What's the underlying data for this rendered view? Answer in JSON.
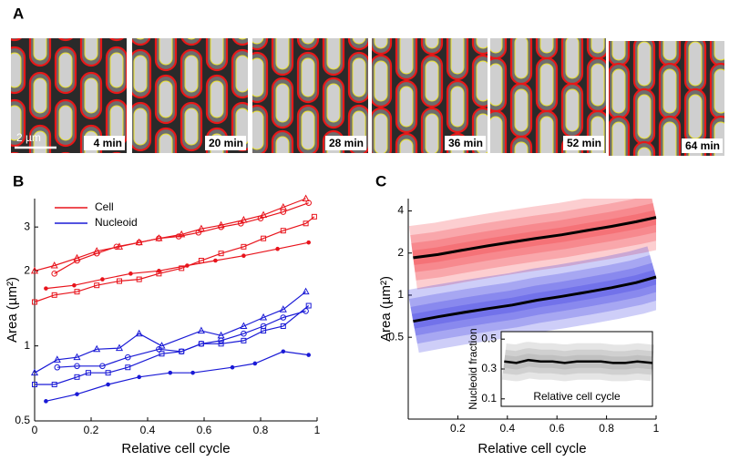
{
  "panel_a": {
    "label": "A",
    "scale_bar": "2 µm",
    "frames": [
      "4 min",
      "20 min",
      "28 min",
      "36 min",
      "52 min",
      "64 min"
    ]
  },
  "chart_data": [
    {
      "type": "line",
      "label": "B",
      "log_y": true,
      "ylabel": "Area (µm²)",
      "xlabel": "Relative cell cycle",
      "xlim": [
        0,
        1
      ],
      "xticks": [
        0,
        0.2,
        0.4,
        0.6,
        0.8,
        1
      ],
      "ylim": [
        0.5,
        3.9
      ],
      "yticks": [
        0.5,
        1,
        2,
        3
      ],
      "legend": "top-left",
      "series": [
        {
          "name": "Cell",
          "color": "#e8141c",
          "marker": "triangle",
          "x": [
            0,
            0.07,
            0.15,
            0.22,
            0.3,
            0.37,
            0.44,
            0.52,
            0.59,
            0.66,
            0.74,
            0.81,
            0.88,
            0.96
          ],
          "values": [
            2.0,
            2.1,
            2.25,
            2.4,
            2.5,
            2.6,
            2.7,
            2.8,
            2.95,
            3.05,
            3.2,
            3.35,
            3.6,
            3.9
          ]
        },
        {
          "name": "Cell",
          "color": "#e8141c",
          "marker": "circle",
          "x": [
            0.07,
            0.15,
            0.22,
            0.29,
            0.37,
            0.44,
            0.51,
            0.58,
            0.66,
            0.73,
            0.8,
            0.88,
            0.97
          ],
          "values": [
            1.95,
            2.2,
            2.35,
            2.5,
            2.6,
            2.7,
            2.75,
            2.85,
            3.0,
            3.1,
            3.25,
            3.45,
            3.75
          ]
        },
        {
          "name": "Cell",
          "color": "#e8141c",
          "marker": "square",
          "x": [
            0,
            0.07,
            0.15,
            0.22,
            0.3,
            0.37,
            0.44,
            0.52,
            0.59,
            0.66,
            0.74,
            0.81,
            0.88,
            0.96,
            0.99
          ],
          "values": [
            1.5,
            1.6,
            1.65,
            1.75,
            1.82,
            1.85,
            1.95,
            2.05,
            2.2,
            2.35,
            2.5,
            2.7,
            2.9,
            3.1,
            3.3
          ]
        },
        {
          "name": "Cell",
          "color": "#e8141c",
          "marker": "star",
          "x": [
            0.04,
            0.14,
            0.24,
            0.34,
            0.44,
            0.54,
            0.64,
            0.74,
            0.86,
            0.97
          ],
          "values": [
            1.7,
            1.75,
            1.85,
            1.95,
            2.0,
            2.1,
            2.2,
            2.3,
            2.45,
            2.6
          ]
        },
        {
          "name": "Nucleoid",
          "color": "#1a1ad6",
          "marker": "triangle",
          "x": [
            0,
            0.08,
            0.15,
            0.22,
            0.3,
            0.37,
            0.45,
            0.59,
            0.66,
            0.74,
            0.81,
            0.88,
            0.96
          ],
          "values": [
            0.78,
            0.88,
            0.9,
            0.97,
            0.98,
            1.12,
            1.0,
            1.15,
            1.1,
            1.2,
            1.3,
            1.4,
            1.65
          ]
        },
        {
          "name": "Nucleoid",
          "color": "#1a1ad6",
          "marker": "circle",
          "x": [
            0.08,
            0.15,
            0.24,
            0.33,
            0.44,
            0.52,
            0.59,
            0.66,
            0.74,
            0.81,
            0.88,
            0.96
          ],
          "values": [
            0.82,
            0.83,
            0.83,
            0.9,
            0.97,
            0.95,
            1.02,
            1.05,
            1.12,
            1.2,
            1.3,
            1.38
          ]
        },
        {
          "name": "Nucleoid",
          "color": "#1a1ad6",
          "marker": "square",
          "x": [
            0,
            0.07,
            0.15,
            0.19,
            0.26,
            0.33,
            0.45,
            0.52,
            0.59,
            0.66,
            0.74,
            0.81,
            0.88,
            0.97
          ],
          "values": [
            0.7,
            0.7,
            0.75,
            0.78,
            0.78,
            0.82,
            0.93,
            0.95,
            1.02,
            1.02,
            1.05,
            1.15,
            1.2,
            1.45
          ]
        },
        {
          "name": "Nucleoid",
          "color": "#1a1ad6",
          "marker": "star",
          "x": [
            0.04,
            0.15,
            0.26,
            0.37,
            0.48,
            0.56,
            0.7,
            0.78,
            0.88,
            0.97
          ],
          "values": [
            0.6,
            0.64,
            0.7,
            0.75,
            0.78,
            0.78,
            0.82,
            0.85,
            0.95,
            0.92
          ]
        }
      ]
    },
    {
      "type": "density",
      "label": "C",
      "log_y": true,
      "ylabel": "Area (µm²)",
      "xlabel": "Relative cell cycle",
      "xlim": [
        0,
        1
      ],
      "xticks": [
        0.2,
        0.4,
        0.6,
        0.8,
        1
      ],
      "ylim": [
        0.13,
        4.9
      ],
      "yticks": [
        0.5,
        1,
        2,
        4
      ],
      "series": [
        {
          "color": "#f0222a",
          "x": [
            0.02,
            0.12,
            0.22,
            0.32,
            0.42,
            0.52,
            0.62,
            0.72,
            0.82,
            0.92,
            1
          ],
          "values": [
            1.85,
            1.95,
            2.1,
            2.25,
            2.4,
            2.55,
            2.7,
            2.9,
            3.1,
            3.35,
            3.6
          ]
        },
        {
          "color": "#2020e0",
          "x": [
            0.02,
            0.12,
            0.22,
            0.32,
            0.42,
            0.52,
            0.62,
            0.72,
            0.82,
            0.92,
            1
          ],
          "values": [
            0.65,
            0.7,
            0.75,
            0.8,
            0.85,
            0.92,
            0.98,
            1.05,
            1.13,
            1.23,
            1.35
          ]
        }
      ]
    },
    {
      "type": "density",
      "ylabel": "Nucleoid fraction",
      "xlabel": "Relative cell cycle",
      "xlim": [
        0,
        1
      ],
      "ylim": [
        0.05,
        0.55
      ],
      "yticks": [
        0.1,
        0.3,
        0.5
      ],
      "series": [
        {
          "color": "#888888",
          "x": [
            0.02,
            0.1,
            0.18,
            0.26,
            0.34,
            0.42,
            0.5,
            0.58,
            0.66,
            0.74,
            0.82,
            0.9,
            1
          ],
          "values": [
            0.35,
            0.34,
            0.36,
            0.35,
            0.35,
            0.34,
            0.35,
            0.35,
            0.35,
            0.34,
            0.34,
            0.35,
            0.34
          ]
        }
      ]
    }
  ]
}
